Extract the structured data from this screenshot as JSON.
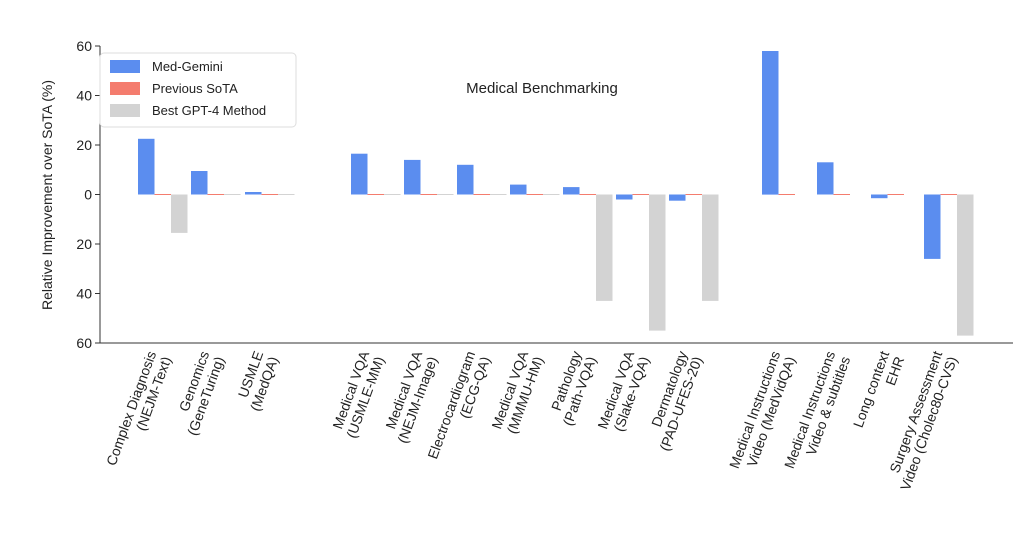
{
  "chart_data": {
    "type": "bar",
    "title": "Medical Benchmarking",
    "ylabel": "Relative Improvement over SoTA (%)",
    "xlabel": "",
    "ylim": [
      -60,
      60
    ],
    "yticks": [
      60,
      40,
      20,
      0,
      -20,
      -40,
      -60
    ],
    "ytick_labels": [
      "60",
      "40",
      "20",
      "0",
      "20",
      "40",
      "60"
    ],
    "grid": false,
    "legend_position": "top-left",
    "series": [
      {
        "name": "Med-Gemini",
        "color": "#5B8DEF"
      },
      {
        "name": "Previous SoTA",
        "color": "#F47C6E"
      },
      {
        "name": "Best GPT-4 Method",
        "color": "#D3D3D3"
      }
    ],
    "groups": [
      {
        "label": [
          "Complex Diagnosis",
          "(NEJM-Text)"
        ],
        "values": [
          22.5,
          0,
          -15.5
        ]
      },
      {
        "label": [
          "Genomics",
          "(GeneTuring)"
        ],
        "values": [
          9.5,
          0,
          0
        ]
      },
      {
        "label": [
          "USMLE",
          "(MedQA)"
        ],
        "values": [
          1,
          0,
          0
        ]
      },
      {
        "label": [
          "Medical VQA",
          "(USMLE-MM)"
        ],
        "values": [
          16.5,
          0,
          0
        ]
      },
      {
        "label": [
          "Medical VQA",
          "(NEJM-Image)"
        ],
        "values": [
          14,
          0,
          0
        ]
      },
      {
        "label": [
          "Electrocardiogram",
          "(ECG-QA)"
        ],
        "values": [
          12,
          0,
          0
        ]
      },
      {
        "label": [
          "Medical VQA",
          "(MMMU-HM)"
        ],
        "values": [
          4,
          0,
          0
        ]
      },
      {
        "label": [
          "Pathology",
          "(Path-VQA)"
        ],
        "values": [
          3,
          0,
          -43
        ]
      },
      {
        "label": [
          "Medical VQA",
          "(Slake-VQA)"
        ],
        "values": [
          -2,
          0,
          -55
        ]
      },
      {
        "label": [
          "Dermatology",
          "(PAD-UFES-20)"
        ],
        "values": [
          -2.5,
          0,
          -43
        ]
      },
      {
        "label": [
          "Medical Instructions",
          "Video (MedVidQA)"
        ],
        "values": [
          58,
          0,
          null
        ]
      },
      {
        "label": [
          "Medical Instructions",
          "Video & subtitles"
        ],
        "values": [
          13,
          0,
          null
        ]
      },
      {
        "label": [
          "Long context",
          "EHR"
        ],
        "values": [
          -1.5,
          0,
          null
        ]
      },
      {
        "label": [
          "Surgery Assessment",
          "Video (Cholec80-CVS)"
        ],
        "values": [
          -26,
          0,
          -57
        ]
      }
    ]
  }
}
